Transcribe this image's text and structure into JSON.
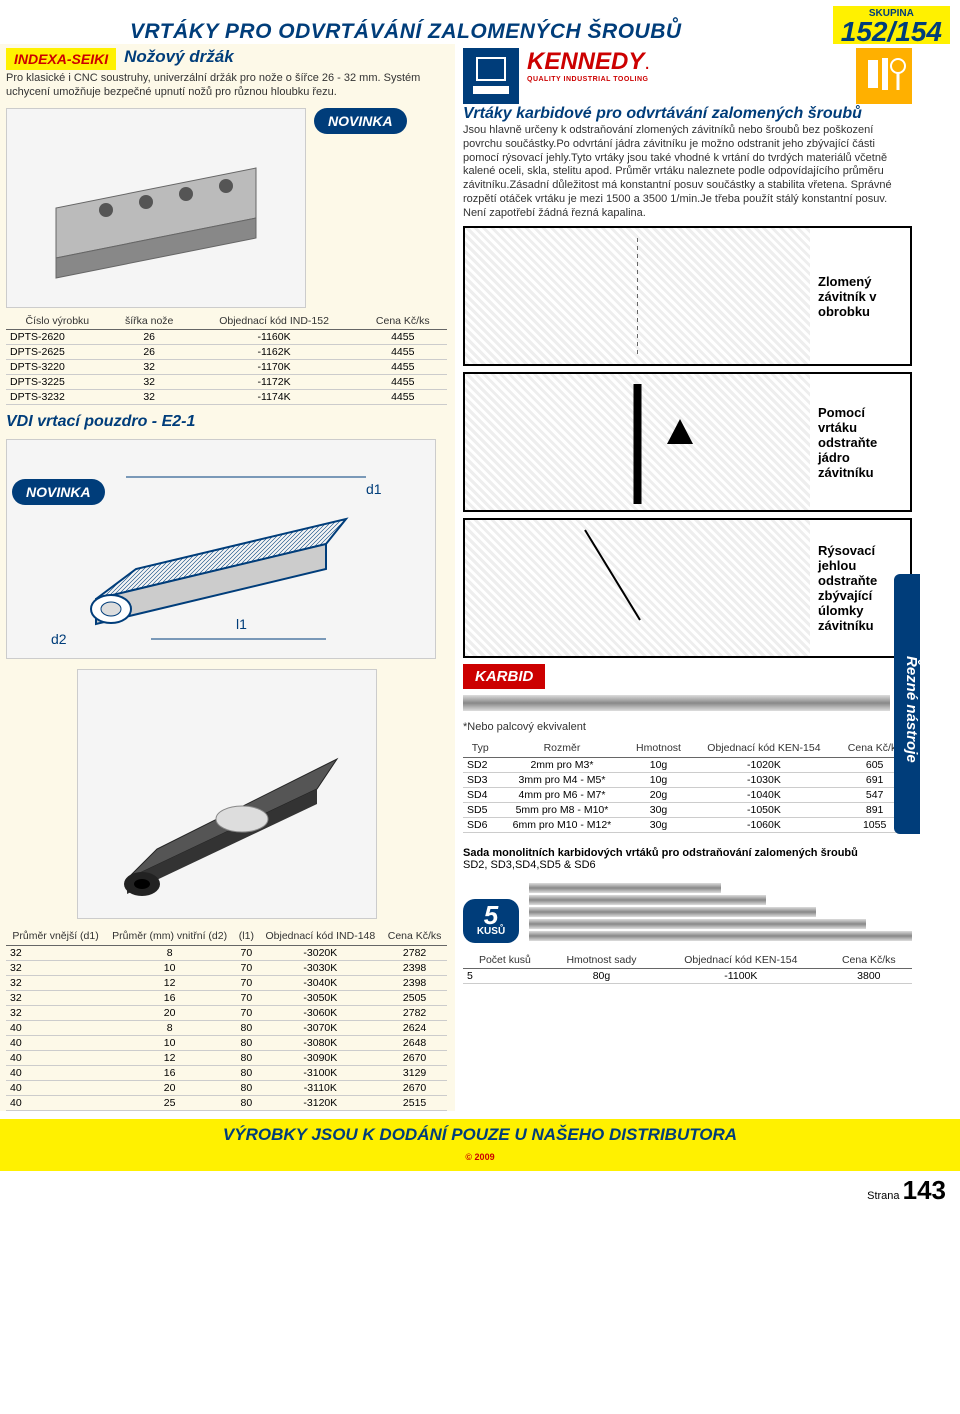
{
  "header": {
    "main_title": "VRTÁKY PRO ODVRTÁVÁNÍ ZALOMENÝCH ŠROUBŮ",
    "skupina_label": "SKUPINA",
    "skupina_num": "152/154"
  },
  "left": {
    "indexa": "INDEXA-SEIKI",
    "knife_title": "Nožový držák",
    "knife_desc": "Pro klasické i CNC soustruhy, univerzální držák pro nože o šířce 26 - 32 mm. Systém uchycení umožňuje bezpečné upnutí nožů pro různou hloubku řezu.",
    "novinka": "NOVINKA",
    "table1": {
      "headers": [
        "Číslo výrobku",
        "šířka nože",
        "Objednací kód IND-152",
        "Cena Kč/ks"
      ],
      "rows": [
        [
          "DPTS-2620",
          "26",
          "-1160K",
          "4455"
        ],
        [
          "DPTS-2625",
          "26",
          "-1162K",
          "4455"
        ],
        [
          "DPTS-3220",
          "32",
          "-1170K",
          "4455"
        ],
        [
          "DPTS-3225",
          "32",
          "-1172K",
          "4455"
        ],
        [
          "DPTS-3232",
          "32",
          "-1174K",
          "4455"
        ]
      ]
    },
    "vdi_title": "VDI vrtací pouzdro - E2-1",
    "d1": "d1",
    "d2": "d2",
    "l1": "l1",
    "table2": {
      "headers": [
        "Průměr vnější (d1)",
        "Průměr (mm) vnitřní (d2)",
        "(l1)",
        "Objednací kód IND-148",
        "Cena Kč/ks"
      ],
      "rows": [
        [
          "32",
          "8",
          "70",
          "-3020K",
          "2782"
        ],
        [
          "32",
          "10",
          "70",
          "-3030K",
          "2398"
        ],
        [
          "32",
          "12",
          "70",
          "-3040K",
          "2398"
        ],
        [
          "32",
          "16",
          "70",
          "-3050K",
          "2505"
        ],
        [
          "32",
          "20",
          "70",
          "-3060K",
          "2782"
        ],
        [
          "40",
          "8",
          "80",
          "-3070K",
          "2624"
        ],
        [
          "40",
          "10",
          "80",
          "-3080K",
          "2648"
        ],
        [
          "40",
          "12",
          "80",
          "-3090K",
          "2670"
        ],
        [
          "40",
          "16",
          "80",
          "-3100K",
          "3129"
        ],
        [
          "40",
          "20",
          "80",
          "-3110K",
          "2670"
        ],
        [
          "40",
          "25",
          "80",
          "-3120K",
          "2515"
        ]
      ]
    }
  },
  "right": {
    "kennedy": "KENNEDY",
    "kennedy_sub": "QUALITY INDUSTRIAL TOOLING",
    "carb_title": "Vrtáky karbidové pro odvrtávání zalomených šroubů",
    "carb_desc": "Jsou hlavně určeny k odstraňování zlomených závitníků nebo šroubů bez poškození povrchu součástky.Po odvrtání jádra závitníku je možno odstranit jeho zbývající části pomocí rýsovací jehly.Tyto vrtáky jsou také vhodné k vrtání do tvrdých materiálů včetně kalené oceli, skla, stelitu apod. Průměr vrtáku naleznete podle odpovídajícího průměru závitníku.Zásadní důležitost má konstantní posuv součástky a stabilita vřetena. Správné rozpětí otáček vrtáku je mezi 1500 a 3500 1/min.Je třeba použít stálý konstantní posuv. Není zapotřebí žádná řezná kapalina.",
    "diag1": "Zlomený závitník v obrobku",
    "diag2": "Pomocí vrtáku odstraňte jádro závitníku",
    "diag3": "Rýsovací jehlou odstraňte zbývající úlomky závitníku",
    "karbid": "KARBID",
    "note": "*Nebo palcový ekvivalent",
    "table3": {
      "headers": [
        "Typ",
        "Rozměr",
        "Hmotnost",
        "Objednací kód KEN-154",
        "Cena Kč/ks"
      ],
      "rows": [
        [
          "SD2",
          "2mm pro M3*",
          "10g",
          "-1020K",
          "605"
        ],
        [
          "SD3",
          "3mm pro M4 - M5*",
          "10g",
          "-1030K",
          "691"
        ],
        [
          "SD4",
          "4mm pro M6 - M7*",
          "20g",
          "-1040K",
          "547"
        ],
        [
          "SD5",
          "5mm pro M8 - M10*",
          "30g",
          "-1050K",
          "891"
        ],
        [
          "SD6",
          "6mm pro M10 - M12*",
          "30g",
          "-1060K",
          "1055"
        ]
      ]
    },
    "set_title": "Sada monolitních karbidových vrtáků pro odstraňování zalomených šroubů",
    "set_sub": "SD2, SD3,SD4,SD5 & SD6",
    "kusu_num": "5",
    "kusu_txt": "KUSŮ",
    "table4": {
      "headers": [
        "Počet kusů",
        "Hmotnost sady",
        "Objednací kód KEN-154",
        "Cena Kč/ks"
      ],
      "rows": [
        [
          "5",
          "80g",
          "-1100K",
          "3800"
        ]
      ]
    },
    "side_tab": "Řezné nástroje"
  },
  "footer": {
    "text": "VÝROBKY JSOU K DODÁNÍ POUZE U NAŠEHO DISTRIBUTORA",
    "copyright": "© 2009",
    "strana": "Strana",
    "page": "143"
  }
}
